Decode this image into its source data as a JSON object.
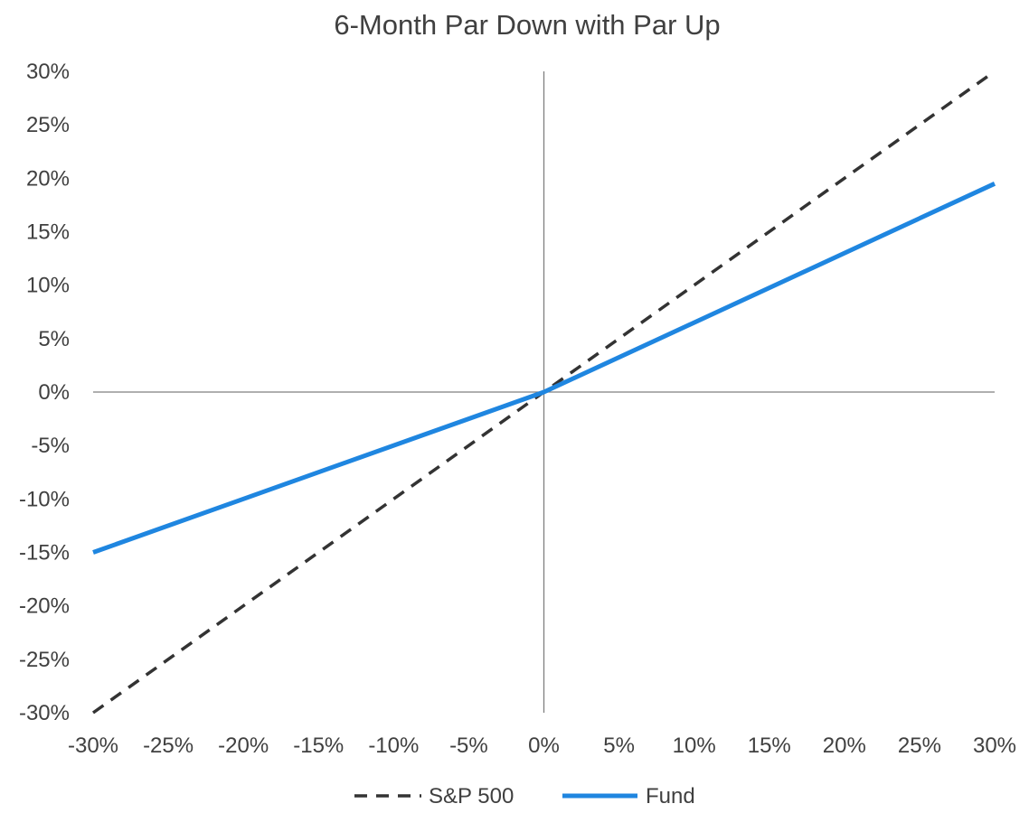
{
  "chart_data": {
    "type": "line",
    "title": "6-Month Par Down with Par Up",
    "xlabel": "",
    "ylabel": "",
    "xlim": [
      -30,
      30
    ],
    "ylim": [
      -30,
      30
    ],
    "x_ticks": [
      "-30%",
      "-25%",
      "-20%",
      "-15%",
      "-10%",
      "-5%",
      "0%",
      "5%",
      "10%",
      "15%",
      "20%",
      "25%",
      "30%"
    ],
    "y_ticks": [
      "30%",
      "25%",
      "20%",
      "15%",
      "10%",
      "5%",
      "0%",
      "-5%",
      "-10%",
      "-15%",
      "-20%",
      "-25%",
      "-30%"
    ],
    "grid": false,
    "legend_position": "bottom",
    "series": [
      {
        "name": "S&P 500",
        "style": "dashed",
        "color": "#333333",
        "x": [
          -30,
          30
        ],
        "y": [
          -30,
          30
        ]
      },
      {
        "name": "Fund",
        "style": "solid",
        "color": "#1f86e0",
        "x": [
          -30,
          0,
          30
        ],
        "y": [
          -15,
          0,
          19.5
        ]
      }
    ]
  }
}
